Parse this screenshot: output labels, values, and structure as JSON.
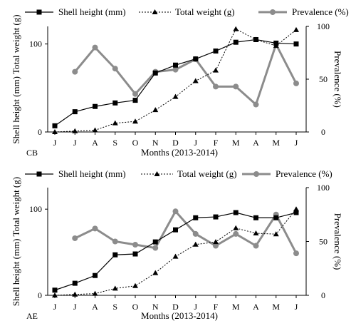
{
  "colors": {
    "shell": "#000000",
    "weight": "#000000",
    "prevalence": "#8c8c8c",
    "axis": "#000000"
  },
  "chart_data": [
    {
      "type": "line",
      "panel_label": "CB",
      "categories": [
        "J",
        "J",
        "A",
        "S",
        "O",
        "N",
        "D",
        "J",
        "F",
        "M",
        "A",
        "M",
        "J"
      ],
      "xlabel": "Months (2013-2014)",
      "ylabel": "Shell height (mm) Total weight (g)",
      "y2label": "Prevalence (%)",
      "ylim": [
        0,
        120
      ],
      "y2lim": [
        0,
        100
      ],
      "yticks": [
        "0",
        "100"
      ],
      "y2ticks": [
        "0",
        "50",
        "100"
      ],
      "grid": false,
      "legend_position": "top",
      "series": [
        {
          "name": "Shell height (mm)",
          "marker": "square",
          "line": "solid",
          "axis": "left",
          "values": [
            7,
            23,
            29,
            33,
            36,
            67,
            76,
            83,
            92,
            102,
            105,
            101,
            100
          ]
        },
        {
          "name": "Total weight (g)",
          "marker": "triangle",
          "line": "dotted",
          "axis": "left",
          "values": [
            0,
            1,
            2,
            10,
            12,
            25,
            40,
            58,
            70,
            117,
            105,
            98,
            116
          ]
        },
        {
          "name": "Prevalence (%)",
          "marker": "circle",
          "line": "thick",
          "axis": "right",
          "values": [
            null,
            57,
            80,
            60,
            36,
            57,
            59,
            69,
            43,
            43,
            26,
            83,
            46
          ]
        }
      ]
    },
    {
      "type": "line",
      "panel_label": "AE",
      "categories": [
        "J",
        "J",
        "A",
        "S",
        "O",
        "N",
        "D",
        "J",
        "F",
        "M",
        "A",
        "M",
        "J"
      ],
      "xlabel": "Months (2013-2014)",
      "ylabel": "Shell height (mm) Total weight (g)",
      "y2label": "Prevalence (%)",
      "ylim": [
        0,
        125
      ],
      "y2lim": [
        0,
        100
      ],
      "yticks": [
        "0",
        "100"
      ],
      "y2ticks": [
        "0",
        "50",
        "100"
      ],
      "grid": false,
      "legend_position": "top",
      "series": [
        {
          "name": "Shell height (mm)",
          "marker": "square",
          "line": "solid",
          "axis": "left",
          "values": [
            6,
            14,
            23,
            47,
            48,
            62,
            76,
            90,
            91,
            96,
            90,
            90,
            96
          ]
        },
        {
          "name": "Total weight (g)",
          "marker": "triangle",
          "line": "dotted",
          "axis": "left",
          "values": [
            0,
            1,
            2,
            8,
            11,
            26,
            45,
            59,
            62,
            78,
            72,
            71,
            100
          ]
        },
        {
          "name": "Prevalence (%)",
          "marker": "circle",
          "line": "thick",
          "axis": "right",
          "values": [
            null,
            53,
            62,
            50,
            47,
            44,
            78,
            57,
            46,
            57,
            46,
            75,
            39
          ]
        }
      ]
    }
  ]
}
